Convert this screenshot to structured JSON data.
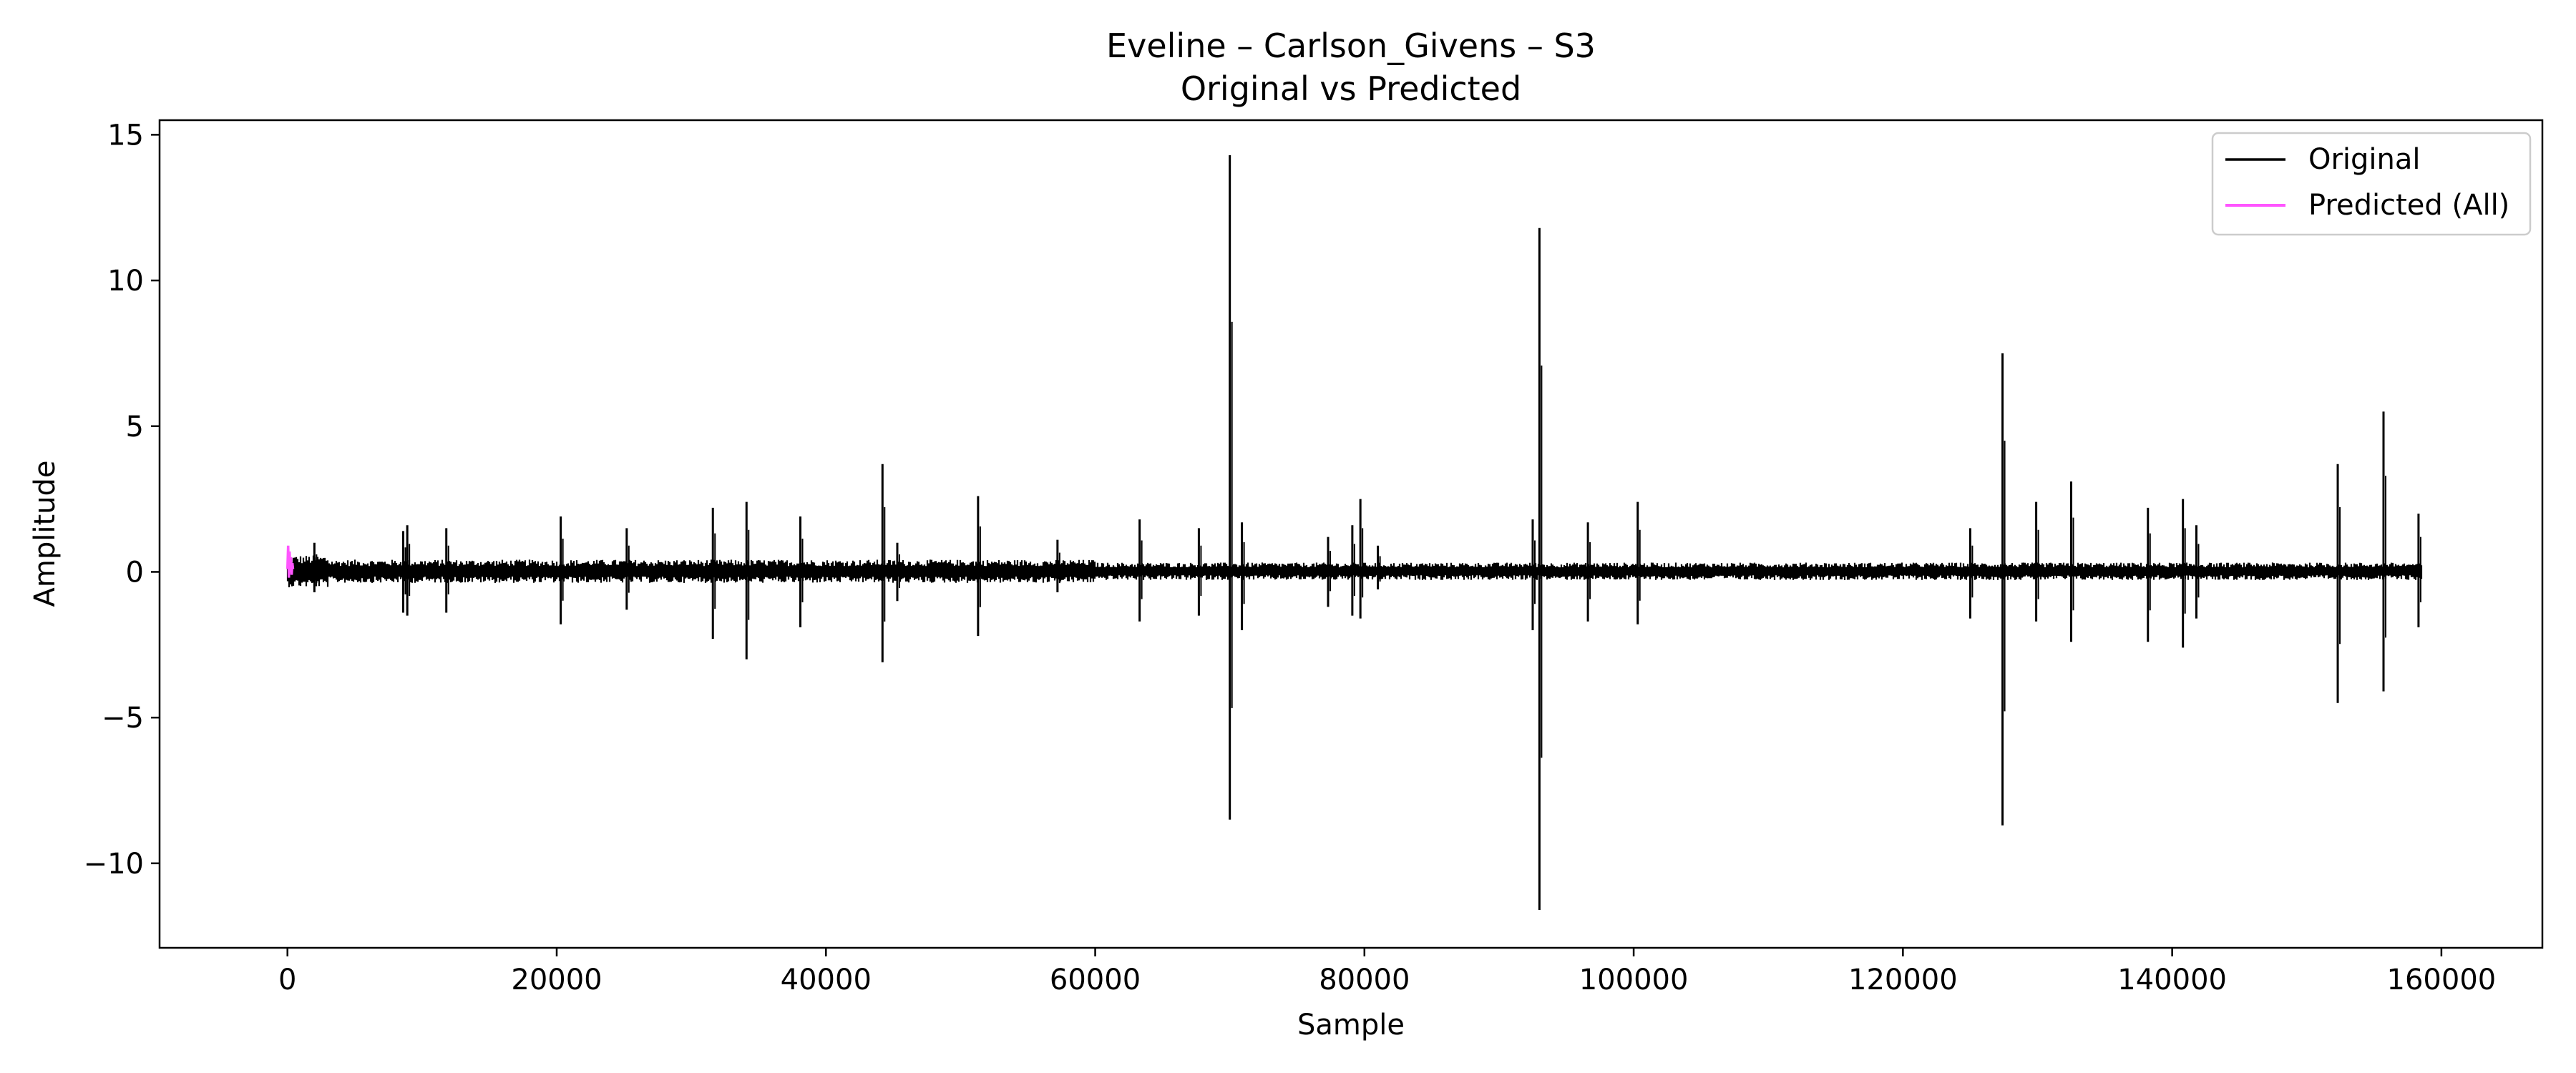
{
  "chart_data": {
    "type": "line",
    "title": "Eveline – Carlson_Givens – S3",
    "subtitle": "Original vs Predicted",
    "xlabel": "Sample",
    "ylabel": "Amplitude",
    "xlim": [
      -9500,
      167500
    ],
    "ylim": [
      -12.9,
      15.5
    ],
    "xticks": [
      0,
      20000,
      40000,
      60000,
      80000,
      100000,
      120000,
      140000,
      160000
    ],
    "xtick_labels": [
      "0",
      "20000",
      "40000",
      "60000",
      "80000",
      "100000",
      "120000",
      "140000",
      "160000"
    ],
    "yticks": [
      -10,
      -5,
      0,
      5,
      10,
      15
    ],
    "ytick_labels": [
      "−10",
      "−5",
      "0",
      "5",
      "10",
      "15"
    ],
    "grid": false,
    "legend_position": "top-right",
    "series": [
      {
        "name": "Original",
        "color": "#000000",
        "x_range": [
          0,
          158500
        ],
        "baseline_noise": [
          {
            "x_start": 0,
            "x_end": 3000,
            "half_range": 0.55
          },
          {
            "x_start": 3000,
            "x_end": 60000,
            "half_range": 0.4
          },
          {
            "x_start": 60000,
            "x_end": 158500,
            "half_range": 0.3
          }
        ],
        "spikes": [
          {
            "x": 2000,
            "min": -0.7,
            "max": 1.0
          },
          {
            "x": 8600,
            "min": -1.4,
            "max": 1.4
          },
          {
            "x": 8900,
            "min": -1.5,
            "max": 1.6
          },
          {
            "x": 11800,
            "min": -1.4,
            "max": 1.5
          },
          {
            "x": 20300,
            "min": -1.8,
            "max": 1.9
          },
          {
            "x": 25200,
            "min": -1.3,
            "max": 1.5
          },
          {
            "x": 31600,
            "min": -2.3,
            "max": 2.2
          },
          {
            "x": 34100,
            "min": -3.0,
            "max": 2.4
          },
          {
            "x": 38100,
            "min": -1.9,
            "max": 1.9
          },
          {
            "x": 44200,
            "min": -3.1,
            "max": 3.7
          },
          {
            "x": 45300,
            "min": -1.0,
            "max": 1.0
          },
          {
            "x": 51300,
            "min": -2.2,
            "max": 2.6
          },
          {
            "x": 57200,
            "min": -0.7,
            "max": 1.1
          },
          {
            "x": 63300,
            "min": -1.7,
            "max": 1.8
          },
          {
            "x": 67700,
            "min": -1.5,
            "max": 1.5
          },
          {
            "x": 70000,
            "min": -8.5,
            "max": 14.3
          },
          {
            "x": 70900,
            "min": -2.0,
            "max": 1.7
          },
          {
            "x": 77300,
            "min": -1.2,
            "max": 1.2
          },
          {
            "x": 79100,
            "min": -1.5,
            "max": 1.6
          },
          {
            "x": 79700,
            "min": -1.6,
            "max": 2.5
          },
          {
            "x": 81000,
            "min": -0.6,
            "max": 0.9
          },
          {
            "x": 92500,
            "min": -2.0,
            "max": 1.8
          },
          {
            "x": 93000,
            "min": -11.6,
            "max": 11.8
          },
          {
            "x": 96600,
            "min": -1.7,
            "max": 1.7
          },
          {
            "x": 100300,
            "min": -1.8,
            "max": 2.4
          },
          {
            "x": 125000,
            "min": -1.6,
            "max": 1.5
          },
          {
            "x": 127400,
            "min": -8.7,
            "max": 7.5
          },
          {
            "x": 129900,
            "min": -1.7,
            "max": 2.4
          },
          {
            "x": 132500,
            "min": -2.4,
            "max": 3.1
          },
          {
            "x": 138200,
            "min": -2.4,
            "max": 2.2
          },
          {
            "x": 140800,
            "min": -2.6,
            "max": 2.5
          },
          {
            "x": 141800,
            "min": -1.6,
            "max": 1.6
          },
          {
            "x": 152300,
            "min": -4.5,
            "max": 3.7
          },
          {
            "x": 155700,
            "min": -4.1,
            "max": 5.5
          },
          {
            "x": 158300,
            "min": -1.9,
            "max": 2.0
          }
        ]
      },
      {
        "name": "Predicted (All)",
        "color": "#ff55ff",
        "x": [
          0,
          20,
          40,
          60,
          80,
          100,
          120,
          140,
          160
        ],
        "y": [
          0.1,
          0.9,
          -0.2,
          0.7,
          0.0,
          0.5,
          -0.1,
          0.3,
          0.1
        ]
      }
    ]
  }
}
